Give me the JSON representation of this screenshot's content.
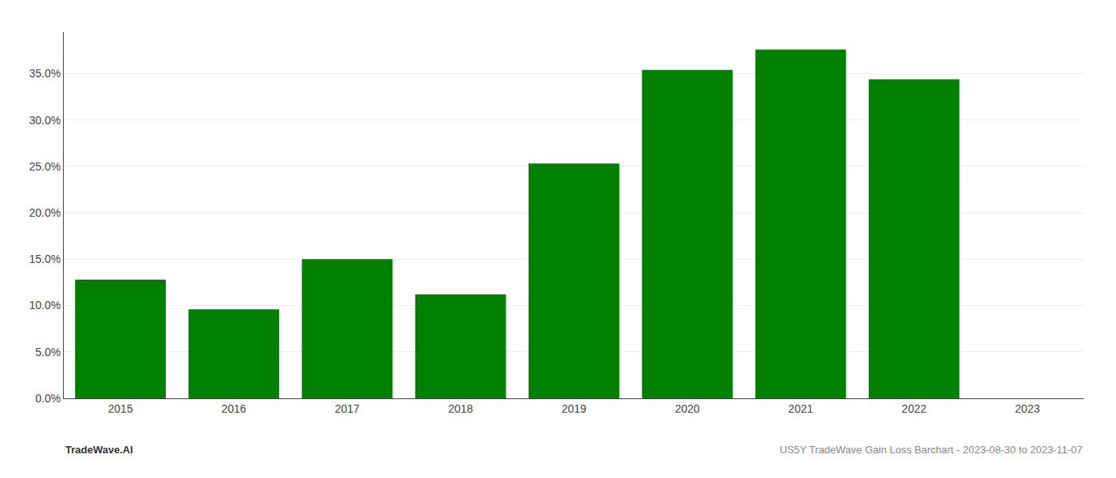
{
  "chart_data": {
    "type": "bar",
    "categories": [
      "2015",
      "2016",
      "2017",
      "2018",
      "2019",
      "2020",
      "2021",
      "2022",
      "2023"
    ],
    "values": [
      0.128,
      0.096,
      0.15,
      0.112,
      0.253,
      0.354,
      0.376,
      0.344,
      null
    ],
    "color": "#008000",
    "ylim": [
      0,
      0.395
    ],
    "yticks": [
      {
        "value": 0.0,
        "label": "0.0%"
      },
      {
        "value": 0.05,
        "label": "5.0%"
      },
      {
        "value": 0.1,
        "label": "10.0%"
      },
      {
        "value": 0.15,
        "label": "15.0%"
      },
      {
        "value": 0.2,
        "label": "20.0%"
      },
      {
        "value": 0.25,
        "label": "25.0%"
      },
      {
        "value": 0.3,
        "label": "30.0%"
      },
      {
        "value": 0.35,
        "label": "35.0%"
      }
    ],
    "grid": true,
    "annotations": [
      "TradeWave.AI",
      "US5Y TradeWave Gain Loss Barchart - 2023-08-30 to 2023-11-07"
    ]
  }
}
